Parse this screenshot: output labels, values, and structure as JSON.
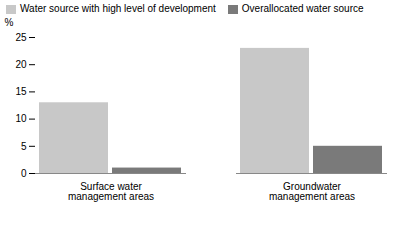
{
  "chart_data": {
    "type": "bar",
    "categories": [
      "Surface water\nmanagement areas",
      "Groundwater\nmanagement areas"
    ],
    "series": [
      {
        "name": "Water source with high level of development",
        "color": "#c8c8c8",
        "values": [
          13,
          23
        ]
      },
      {
        "name": "Overallocated water source",
        "color": "#7a7a7a",
        "values": [
          1,
          5
        ]
      }
    ],
    "ylabel": "%",
    "ylim": [
      0,
      25
    ],
    "yticks": [
      0,
      5,
      10,
      15,
      20,
      25
    ],
    "grid": false,
    "legend": "upper left"
  }
}
